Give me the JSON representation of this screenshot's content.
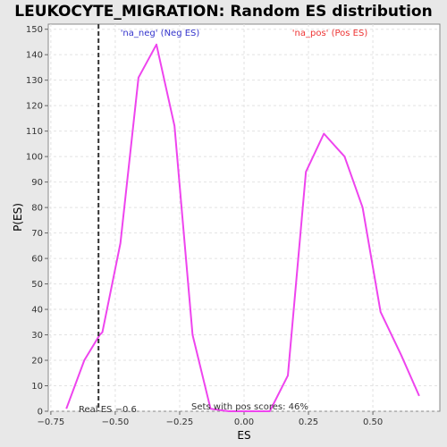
{
  "chart_data": {
    "type": "line",
    "title": "LEUKOCYTE_MIGRATION: Random ES distribution",
    "xlabel": "ES",
    "ylabel": "P(ES)",
    "xlim": [
      -0.76,
      0.76
    ],
    "ylim": [
      0,
      152
    ],
    "x_ticks": [
      -0.75,
      -0.5,
      -0.25,
      0.0,
      0.25,
      0.5
    ],
    "x_tick_labels": [
      "−0.75",
      "−0.50",
      "−0.25",
      "0.00",
      "0.25",
      "0.50"
    ],
    "y_ticks": [
      0,
      10,
      20,
      30,
      40,
      50,
      60,
      70,
      80,
      90,
      100,
      110,
      120,
      130,
      140,
      150
    ],
    "y_tick_labels": [
      "0",
      "10",
      "20",
      "30",
      "40",
      "50",
      "60",
      "70",
      "80",
      "90",
      "100",
      "110",
      "120",
      "130",
      "140",
      "150"
    ],
    "grid": true,
    "series": [
      {
        "color": "#ee44ee",
        "points": [
          [
            -0.69,
            1
          ],
          [
            -0.62,
            20
          ],
          [
            -0.56,
            30
          ],
          [
            -0.55,
            31
          ],
          [
            -0.48,
            66
          ],
          [
            -0.41,
            131
          ],
          [
            -0.34,
            144
          ],
          [
            -0.27,
            112
          ],
          [
            -0.2,
            30
          ],
          [
            -0.13,
            1
          ],
          [
            -0.06,
            0
          ],
          [
            0.03,
            0
          ],
          [
            0.1,
            0
          ],
          [
            0.17,
            14
          ],
          [
            0.24,
            94
          ],
          [
            0.31,
            109
          ],
          [
            0.39,
            100
          ],
          [
            0.46,
            80
          ],
          [
            0.53,
            39
          ],
          [
            0.61,
            22
          ],
          [
            0.68,
            6
          ]
        ]
      }
    ],
    "real_es": {
      "x": -0.565,
      "label": "Real ES −0.6"
    },
    "annotations": {
      "neg": {
        "text": "'na_neg' (Neg ES)",
        "color": "#3333cc"
      },
      "pos": {
        "text": "'na_pos' (Pos ES)",
        "color": "#ee3333"
      },
      "pos_scores": "Sets with pos scores: 46%"
    }
  }
}
